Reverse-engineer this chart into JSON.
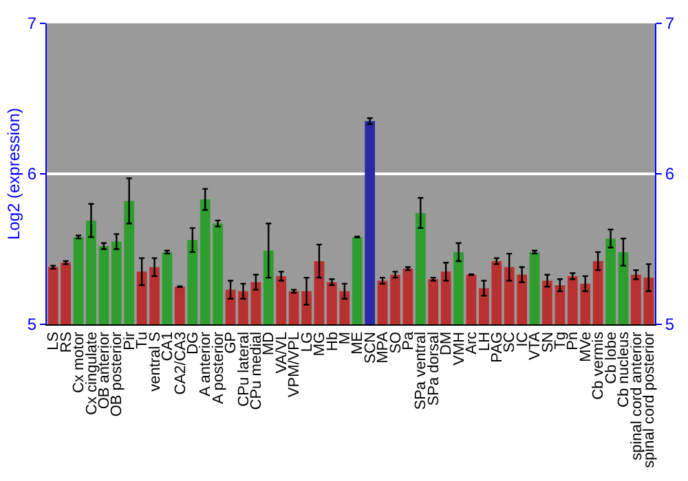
{
  "chart_data": {
    "type": "bar",
    "ylabel": "Log2 (expression)",
    "categories": [
      "LS",
      "RS",
      "Cx motor",
      "Cx cingulate",
      "OB anterior",
      "OB posterior",
      "Pir",
      "Tu",
      "ventral S",
      "CA1",
      "CA2/CA3",
      "DG",
      "A anterior",
      "A posterior",
      "GP",
      "CPu lateral",
      "CPu medial",
      "MD",
      "VA/VL",
      "VPM/VPL",
      "LG",
      "MG",
      "Hb",
      "M",
      "ME",
      "SCN",
      "MPA",
      "SO",
      "Pa",
      "SPa ventral",
      "SPa dorsal",
      "DM",
      "VMH",
      "Arc",
      "LH",
      "PAG",
      "SC",
      "IC",
      "VTA",
      "SN",
      "Tg",
      "Pn",
      "MVe",
      "Cb vermis",
      "Cb lobe",
      "Cb nucleus",
      "spinal cord anterior",
      "spinal cord posterior"
    ],
    "values": [
      5.38,
      5.41,
      5.58,
      5.69,
      5.52,
      5.55,
      5.82,
      5.35,
      5.38,
      5.48,
      5.25,
      5.56,
      5.83,
      5.67,
      5.23,
      5.22,
      5.28,
      5.49,
      5.32,
      5.22,
      5.22,
      5.42,
      5.28,
      5.22,
      5.58,
      6.35,
      5.29,
      5.33,
      5.37,
      5.74,
      5.3,
      5.35,
      5.48,
      5.33,
      5.24,
      5.42,
      5.38,
      5.33,
      5.48,
      5.29,
      5.26,
      5.32,
      5.27,
      5.42,
      5.57,
      5.48,
      5.33,
      5.31
    ],
    "errors": [
      0.01,
      0.01,
      0.01,
      0.11,
      0.02,
      0.05,
      0.15,
      0.09,
      0.06,
      0.01,
      0.003,
      0.08,
      0.07,
      0.02,
      0.06,
      0.05,
      0.05,
      0.18,
      0.03,
      0.01,
      0.09,
      0.11,
      0.02,
      0.05,
      0.003,
      0.02,
      0.02,
      0.02,
      0.01,
      0.1,
      0.01,
      0.06,
      0.06,
      0.003,
      0.05,
      0.02,
      0.09,
      0.05,
      0.01,
      0.04,
      0.04,
      0.02,
      0.05,
      0.06,
      0.06,
      0.09,
      0.03,
      0.09
    ],
    "colors": [
      "#b83030",
      "#b83030",
      "#2e9e2e",
      "#2e9e2e",
      "#2e9e2e",
      "#2e9e2e",
      "#2e9e2e",
      "#b83030",
      "#b83030",
      "#2e9e2e",
      "#b83030",
      "#2e9e2e",
      "#2e9e2e",
      "#2e9e2e",
      "#b83030",
      "#b83030",
      "#b83030",
      "#2e9e2e",
      "#b83030",
      "#b83030",
      "#b83030",
      "#b83030",
      "#b83030",
      "#b83030",
      "#2e9e2e",
      "#2a2aa8",
      "#b83030",
      "#b83030",
      "#b83030",
      "#2e9e2e",
      "#b83030",
      "#b83030",
      "#2e9e2e",
      "#b83030",
      "#b83030",
      "#b83030",
      "#b83030",
      "#b83030",
      "#2e9e2e",
      "#b83030",
      "#b83030",
      "#b83030",
      "#b83030",
      "#b83030",
      "#2e9e2e",
      "#2e9e2e",
      "#b83030",
      "#b83030"
    ],
    "ylim": [
      5,
      7
    ],
    "yticks": [
      5,
      6,
      7
    ],
    "y2lim": [
      5,
      7
    ],
    "y2ticks": [
      5,
      6,
      7
    ],
    "grid": "y"
  }
}
